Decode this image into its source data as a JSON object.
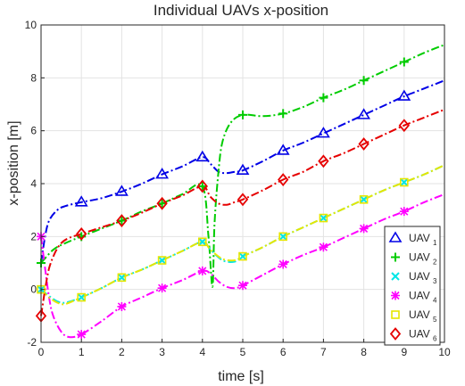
{
  "chart_data": {
    "type": "line",
    "title": "Individual UAVs x-position",
    "xlabel": "time [s]",
    "ylabel": "x-position [m]",
    "xlim": [
      0,
      10
    ],
    "ylim": [
      -2,
      10
    ],
    "xticks": [
      "0",
      "1",
      "2",
      "3",
      "4",
      "5",
      "6",
      "7",
      "8",
      "9",
      "10"
    ],
    "yticks": [
      "-2",
      "0",
      "2",
      "4",
      "6",
      "8",
      "10"
    ],
    "grid": true,
    "legend_position": "bottom-right",
    "series": [
      {
        "name": "UAV",
        "subscript": "1",
        "color": "#0000e6",
        "marker": "triangle",
        "x": [
          0,
          0.1,
          0.2,
          0.4,
          0.6,
          1,
          1.5,
          2,
          2.5,
          3,
          3.5,
          4,
          4.2,
          4.4,
          4.6,
          4.8,
          5,
          5.5,
          6,
          6.5,
          7,
          7.5,
          8,
          8.5,
          9,
          9.5,
          10
        ],
        "y": [
          1.0,
          2.0,
          2.6,
          3.0,
          3.15,
          3.3,
          3.45,
          3.7,
          4.0,
          4.35,
          4.65,
          5.0,
          4.75,
          4.45,
          4.4,
          4.45,
          4.5,
          4.85,
          5.25,
          5.55,
          5.9,
          6.25,
          6.6,
          6.95,
          7.3,
          7.6,
          7.9
        ],
        "markers_x": [
          1,
          2,
          3,
          4,
          5,
          6,
          7,
          8,
          9
        ],
        "markers_y": [
          3.3,
          3.7,
          4.35,
          5.0,
          4.5,
          5.25,
          5.9,
          6.6,
          7.3
        ]
      },
      {
        "name": "UAV",
        "subscript": "2",
        "color": "#00cc00",
        "marker": "plus",
        "x": [
          0,
          0.3,
          0.6,
          1,
          1.5,
          2,
          2.5,
          3,
          3.5,
          4,
          4.15,
          4.25,
          4.3,
          4.4,
          4.5,
          4.7,
          5,
          5.5,
          6,
          6.5,
          7,
          7.5,
          8,
          8.5,
          9,
          9.5,
          10
        ],
        "y": [
          1.0,
          1.5,
          1.75,
          2.0,
          2.3,
          2.6,
          2.95,
          3.25,
          3.6,
          3.9,
          2.0,
          0.1,
          2.5,
          4.5,
          5.6,
          6.3,
          6.6,
          6.55,
          6.65,
          6.9,
          7.25,
          7.55,
          7.9,
          8.25,
          8.6,
          8.95,
          9.25
        ],
        "markers_x": [
          0,
          1,
          2,
          3,
          4,
          5,
          6,
          7,
          8,
          9
        ],
        "markers_y": [
          1.0,
          2.0,
          2.6,
          3.25,
          3.9,
          6.6,
          6.65,
          7.25,
          7.9,
          8.6
        ]
      },
      {
        "name": "UAV",
        "subscript": "3",
        "color": "#00e6e6",
        "marker": "x",
        "x": [
          0,
          0.2,
          0.4,
          0.6,
          1,
          1.5,
          2,
          2.5,
          3,
          3.5,
          4,
          4.2,
          4.5,
          4.8,
          5,
          5.5,
          6,
          6.5,
          7,
          7.5,
          8,
          8.5,
          9,
          9.5,
          10
        ],
        "y": [
          0.0,
          -0.25,
          -0.45,
          -0.5,
          -0.3,
          0.05,
          0.45,
          0.75,
          1.1,
          1.45,
          1.8,
          1.5,
          1.1,
          1.05,
          1.25,
          1.6,
          2.0,
          2.35,
          2.7,
          3.05,
          3.4,
          3.75,
          4.05,
          4.35,
          4.7
        ],
        "markers_x": [
          0,
          1,
          2,
          3,
          4,
          5,
          6,
          7,
          8,
          9
        ],
        "markers_y": [
          0.0,
          -0.3,
          0.45,
          1.1,
          1.8,
          1.25,
          2.0,
          2.7,
          3.4,
          4.05
        ]
      },
      {
        "name": "UAV",
        "subscript": "4",
        "color": "#ff00ff",
        "marker": "asterisk",
        "x": [
          0,
          0.1,
          0.2,
          0.3,
          0.5,
          0.7,
          1,
          1.5,
          2,
          2.5,
          3,
          3.5,
          4,
          4.2,
          4.4,
          4.6,
          4.8,
          5,
          5.5,
          6,
          6.5,
          7,
          7.5,
          8,
          8.5,
          9,
          9.5,
          10
        ],
        "y": [
          2.0,
          0.8,
          -0.3,
          -1.0,
          -1.6,
          -1.8,
          -1.7,
          -1.2,
          -0.65,
          -0.3,
          0.05,
          0.35,
          0.7,
          0.6,
          0.3,
          0.1,
          0.05,
          0.15,
          0.55,
          0.95,
          1.3,
          1.6,
          1.95,
          2.3,
          2.65,
          2.95,
          3.3,
          3.6
        ],
        "markers_x": [
          0,
          1,
          2,
          3,
          4,
          5,
          6,
          7,
          8,
          9
        ],
        "markers_y": [
          2.0,
          -1.7,
          -0.65,
          0.05,
          0.7,
          0.15,
          0.95,
          1.6,
          2.3,
          2.95
        ]
      },
      {
        "name": "UAV",
        "subscript": "5",
        "color": "#e6e600",
        "marker": "square",
        "x": [
          0,
          0.2,
          0.4,
          0.6,
          1,
          1.5,
          2,
          2.5,
          3,
          3.5,
          4,
          4.2,
          4.5,
          4.8,
          5,
          5.5,
          6,
          6.5,
          7,
          7.5,
          8,
          8.5,
          9,
          9.5,
          10
        ],
        "y": [
          0.0,
          -0.3,
          -0.5,
          -0.55,
          -0.3,
          0.05,
          0.45,
          0.75,
          1.1,
          1.45,
          1.8,
          1.5,
          1.15,
          1.1,
          1.25,
          1.6,
          2.0,
          2.35,
          2.7,
          3.05,
          3.4,
          3.75,
          4.05,
          4.35,
          4.7
        ],
        "markers_x": [
          0,
          1,
          2,
          3,
          4,
          5,
          6,
          7,
          8,
          9
        ],
        "markers_y": [
          0.0,
          -0.3,
          0.45,
          1.1,
          1.8,
          1.25,
          2.0,
          2.7,
          3.4,
          4.05
        ]
      },
      {
        "name": "UAV",
        "subscript": "6",
        "color": "#e60000",
        "marker": "diamond",
        "x": [
          0,
          0.1,
          0.2,
          0.35,
          0.5,
          0.7,
          1,
          1.5,
          2,
          2.5,
          3,
          3.5,
          4,
          4.2,
          4.4,
          4.6,
          4.8,
          5,
          5.5,
          6,
          6.5,
          7,
          7.5,
          8,
          8.5,
          9,
          9.5,
          10
        ],
        "y": [
          -1.0,
          0.0,
          0.8,
          1.4,
          1.75,
          1.95,
          2.1,
          2.35,
          2.6,
          2.9,
          3.25,
          3.55,
          3.9,
          3.5,
          3.25,
          3.2,
          3.3,
          3.4,
          3.75,
          4.15,
          4.45,
          4.85,
          5.15,
          5.5,
          5.85,
          6.2,
          6.5,
          6.8
        ],
        "markers_x": [
          0,
          1,
          2,
          3,
          4,
          5,
          6,
          7,
          8,
          9
        ],
        "markers_y": [
          -1.0,
          2.1,
          2.6,
          3.25,
          3.9,
          3.4,
          4.15,
          4.85,
          5.5,
          6.2
        ]
      }
    ]
  }
}
